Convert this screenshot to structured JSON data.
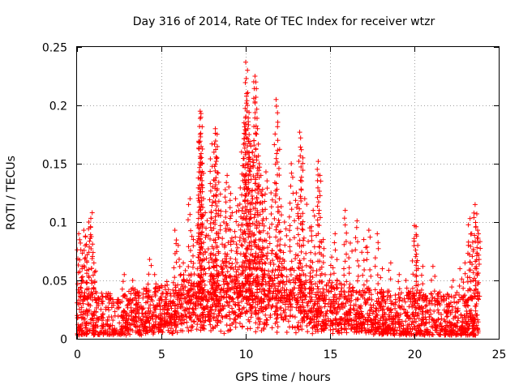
{
  "chart_data": {
    "type": "scatter",
    "title": "Day 316 of 2014, Rate Of TEC Index for receiver wtzr",
    "xlabel": "GPS time / hours",
    "ylabel": "ROTI / TECUs",
    "xlim": [
      0,
      25
    ],
    "ylim": [
      0,
      0.25
    ],
    "x_ticks": [
      0,
      5,
      10,
      15,
      20,
      25
    ],
    "x_tick_labels": [
      "0",
      "5",
      "10",
      "15",
      "20",
      "25"
    ],
    "y_ticks": [
      0,
      0.05,
      0.1,
      0.15,
      0.2,
      0.25
    ],
    "y_tick_labels": [
      "0",
      "0.05",
      "0.1",
      "0.15",
      "0.2",
      "0.25"
    ],
    "grid": true,
    "marker": "+",
    "color": "#ff0000",
    "series": [
      {
        "name": "ROTI",
        "points": [
          [
            0.1,
            0.09
          ],
          [
            0.2,
            0.082
          ],
          [
            0.3,
            0.06
          ],
          [
            0.4,
            0.093
          ],
          [
            0.5,
            0.088
          ],
          [
            0.6,
            0.072
          ],
          [
            0.7,
            0.1
          ],
          [
            0.8,
            0.096
          ],
          [
            0.9,
            0.108
          ],
          [
            1.0,
            0.065
          ],
          [
            1.1,
            0.058
          ],
          [
            0.3,
            0.05
          ],
          [
            1.5,
            0.03
          ],
          [
            2.0,
            0.035
          ],
          [
            2.8,
            0.055
          ],
          [
            3.3,
            0.05
          ],
          [
            4.3,
            0.068
          ],
          [
            4.6,
            0.055
          ],
          [
            5.8,
            0.093
          ],
          [
            6.0,
            0.08
          ],
          [
            6.3,
            0.065
          ],
          [
            6.7,
            0.12
          ],
          [
            6.9,
            0.085
          ],
          [
            7.2,
            0.095
          ],
          [
            7.3,
            0.195
          ],
          [
            7.35,
            0.193
          ],
          [
            7.3,
            0.175
          ],
          [
            7.25,
            0.168
          ],
          [
            7.4,
            0.15
          ],
          [
            7.5,
            0.12
          ],
          [
            7.6,
            0.108
          ],
          [
            7.9,
            0.133
          ],
          [
            8.0,
            0.167
          ],
          [
            8.2,
            0.18
          ],
          [
            8.2,
            0.176
          ],
          [
            8.3,
            0.155
          ],
          [
            8.5,
            0.124
          ],
          [
            8.7,
            0.1
          ],
          [
            8.9,
            0.14
          ],
          [
            9.0,
            0.13
          ],
          [
            9.2,
            0.108
          ],
          [
            9.4,
            0.12
          ],
          [
            9.6,
            0.11
          ],
          [
            9.75,
            0.16
          ],
          [
            9.9,
            0.185
          ],
          [
            10.0,
            0.237
          ],
          [
            10.05,
            0.21
          ],
          [
            10.1,
            0.2
          ],
          [
            10.15,
            0.186
          ],
          [
            10.2,
            0.175
          ],
          [
            10.3,
            0.165
          ],
          [
            10.4,
            0.16
          ],
          [
            10.55,
            0.225
          ],
          [
            10.6,
            0.22
          ],
          [
            10.7,
            0.18
          ],
          [
            10.8,
            0.15
          ],
          [
            10.9,
            0.14
          ],
          [
            11.0,
            0.128
          ],
          [
            11.2,
            0.143
          ],
          [
            11.5,
            0.125
          ],
          [
            11.8,
            0.205
          ],
          [
            11.9,
            0.17
          ],
          [
            12.0,
            0.12
          ],
          [
            12.3,
            0.1
          ],
          [
            12.7,
            0.15
          ],
          [
            13.0,
            0.125
          ],
          [
            13.2,
            0.177
          ],
          [
            13.3,
            0.162
          ],
          [
            13.5,
            0.12
          ],
          [
            13.8,
            0.095
          ],
          [
            14.0,
            0.11
          ],
          [
            14.3,
            0.152
          ],
          [
            14.4,
            0.14
          ],
          [
            14.6,
            0.085
          ],
          [
            15.1,
            0.07
          ],
          [
            15.3,
            0.09
          ],
          [
            15.9,
            0.11
          ],
          [
            16.2,
            0.082
          ],
          [
            16.6,
            0.101
          ],
          [
            17.0,
            0.085
          ],
          [
            17.3,
            0.093
          ],
          [
            17.8,
            0.09
          ],
          [
            18.1,
            0.06
          ],
          [
            18.6,
            0.065
          ],
          [
            19.1,
            0.055
          ],
          [
            19.5,
            0.05
          ],
          [
            20.0,
            0.097
          ],
          [
            20.1,
            0.096
          ],
          [
            20.2,
            0.08
          ],
          [
            20.5,
            0.062
          ],
          [
            21.1,
            0.062
          ],
          [
            21.5,
            0.04
          ],
          [
            22.3,
            0.05
          ],
          [
            22.7,
            0.06
          ],
          [
            23.0,
            0.065
          ],
          [
            23.2,
            0.08
          ],
          [
            23.3,
            0.103
          ],
          [
            23.4,
            0.09
          ],
          [
            23.6,
            0.115
          ],
          [
            23.7,
            0.107
          ],
          [
            23.75,
            0.093
          ],
          [
            23.8,
            0.09
          ]
        ],
        "noise_band": {
          "x_range": [
            0,
            23.8
          ],
          "y_range": [
            0.003,
            0.04
          ],
          "description": "dense cluster of points along the whole day between about 0.005 and 0.04"
        }
      }
    ]
  }
}
